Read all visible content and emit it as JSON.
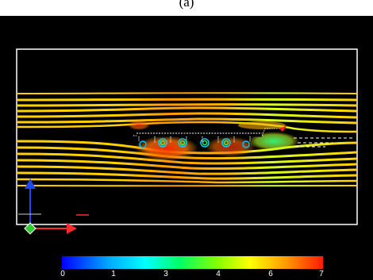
{
  "figure": {
    "caption": "(a)"
  },
  "colorbar": {
    "ticks": [
      "0",
      "1",
      "3",
      "4",
      "6",
      "7"
    ],
    "colors": [
      "#0000ff",
      "#00ffff",
      "#00ff00",
      "#ffff00",
      "#ff8800",
      "#ff0000"
    ]
  },
  "scene": {
    "background": "#000000",
    "domain_outline_color": "#ffffff",
    "streamline_base_color": "#ffd400",
    "axis_triad": {
      "x_color": "#ff2a2a",
      "y_color": "#2244ff",
      "z_color": "#33cc33"
    }
  }
}
